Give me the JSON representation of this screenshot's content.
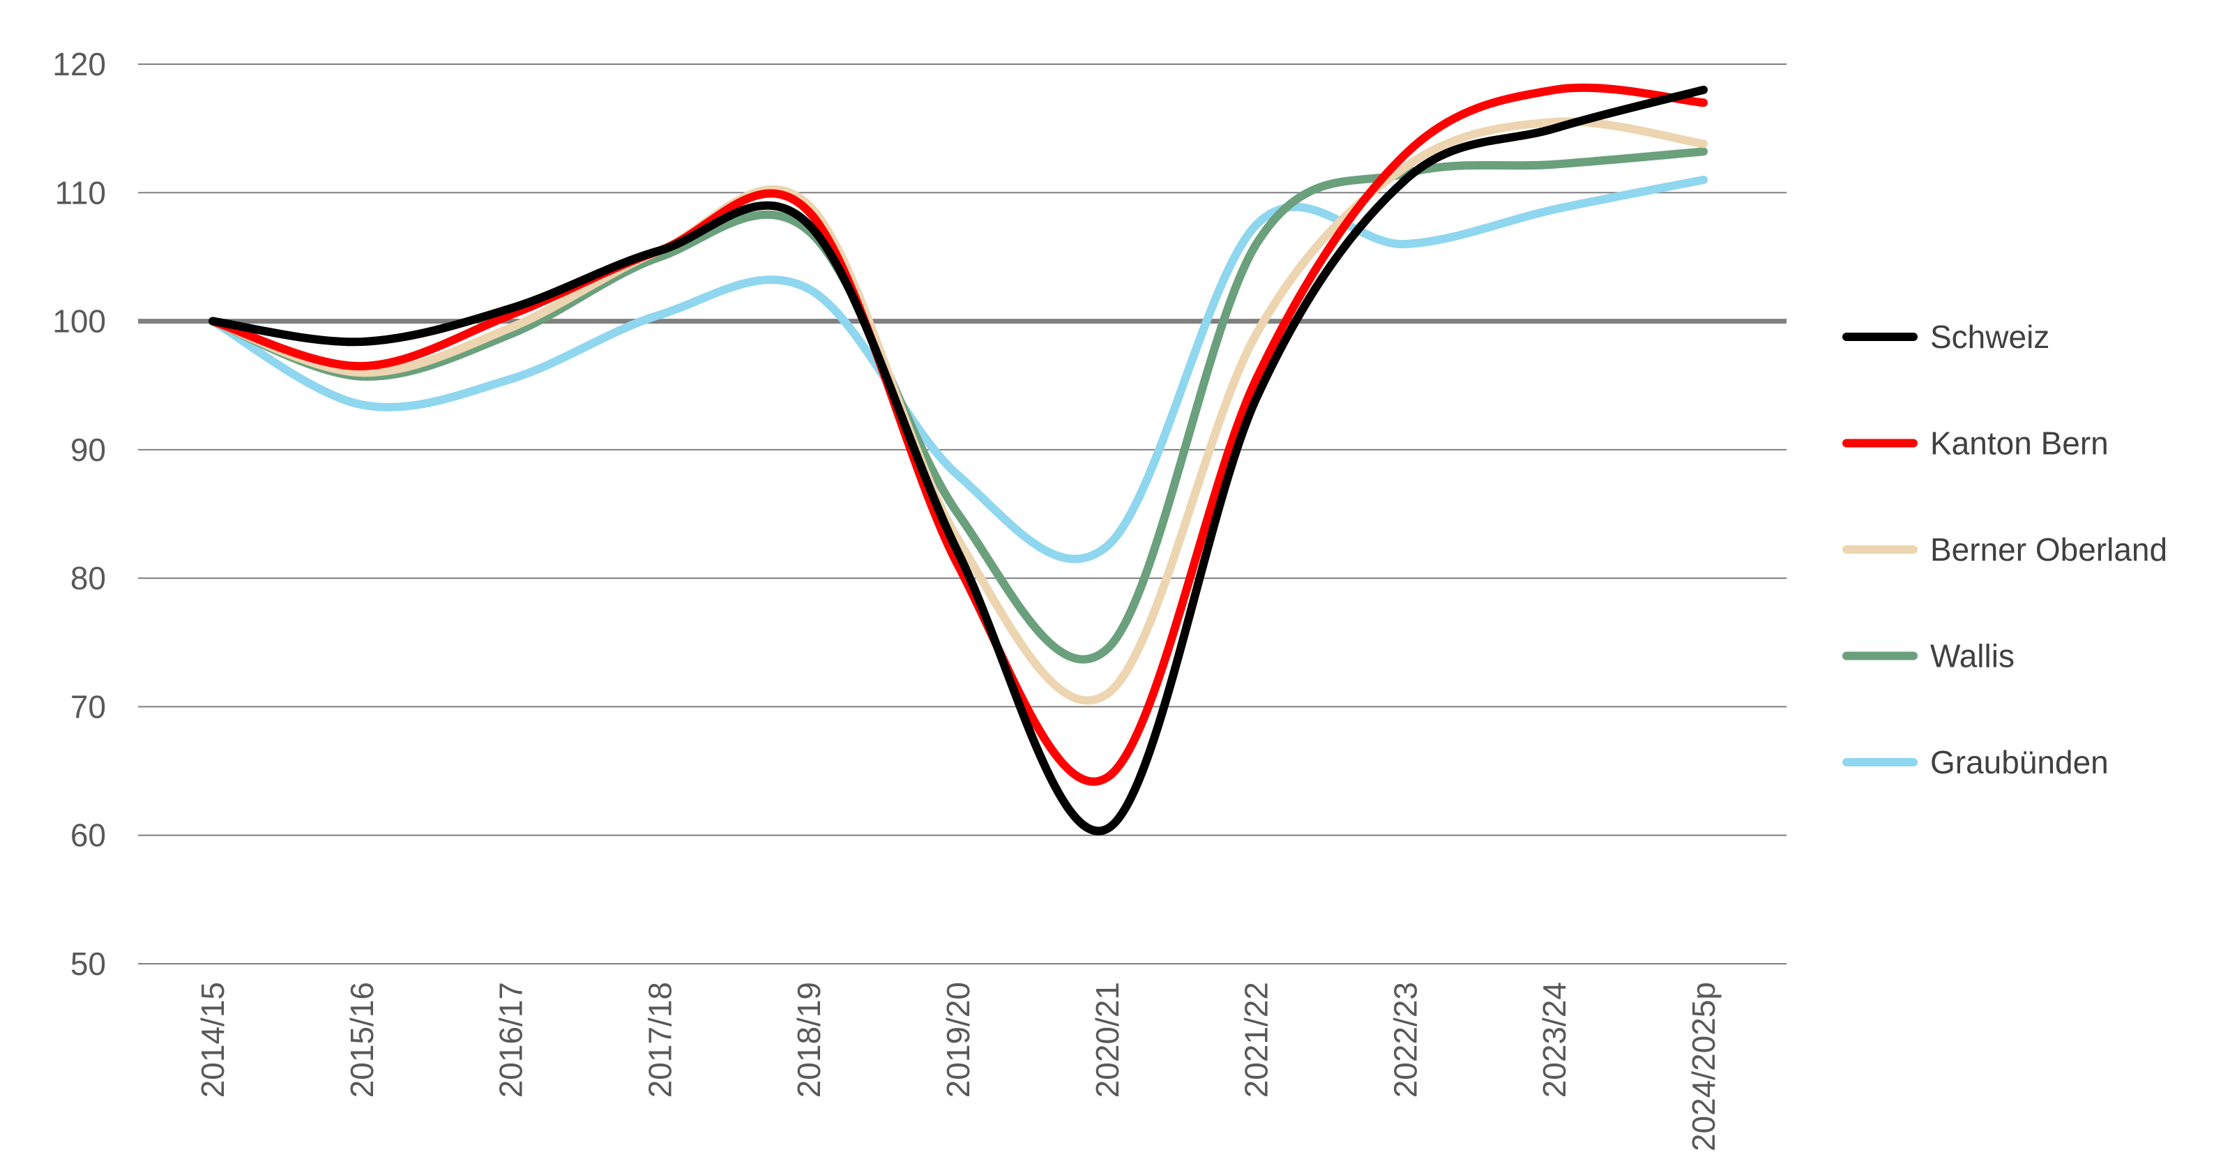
{
  "chart_data": {
    "type": "line",
    "title": "",
    "xlabel": "",
    "ylabel": "",
    "categories": [
      "2014/15",
      "2015/16",
      "2016/17",
      "2017/18",
      "2018/19",
      "2019/20",
      "2020/21",
      "2021/22",
      "2022/23",
      "2023/24",
      "2024/2025p"
    ],
    "ylim": [
      50,
      120
    ],
    "yticks": [
      50,
      60,
      70,
      80,
      90,
      100,
      110,
      120
    ],
    "baseline": 100,
    "grid": "horizontal",
    "legend_position": "right",
    "series": [
      {
        "name": "Schweiz",
        "color": "#000000",
        "values": [
          100,
          98.4,
          101,
          105.5,
          107.5,
          82,
          60.5,
          94,
          111,
          115,
          118
        ]
      },
      {
        "name": "Kanton Bern",
        "color": "#ff0000",
        "values": [
          100,
          96.5,
          100.5,
          105.5,
          108.5,
          81,
          64.5,
          95.5,
          113,
          118,
          117
        ]
      },
      {
        "name": "Berner Oberland",
        "color": "#ecd5b0",
        "values": [
          100,
          96,
          99.5,
          105.5,
          109,
          83,
          71,
          99,
          112,
          115.5,
          113.8
        ]
      },
      {
        "name": "Wallis",
        "color": "#6aa07c",
        "values": [
          100,
          95.7,
          99,
          105,
          107,
          85,
          74.5,
          106,
          111.5,
          112.2,
          113.2
        ]
      },
      {
        "name": "Graubünden",
        "color": "#8fd6ef",
        "values": [
          100,
          93.5,
          95.5,
          100.5,
          102.5,
          88,
          82.5,
          107.5,
          106,
          108.7,
          111
        ]
      }
    ]
  }
}
